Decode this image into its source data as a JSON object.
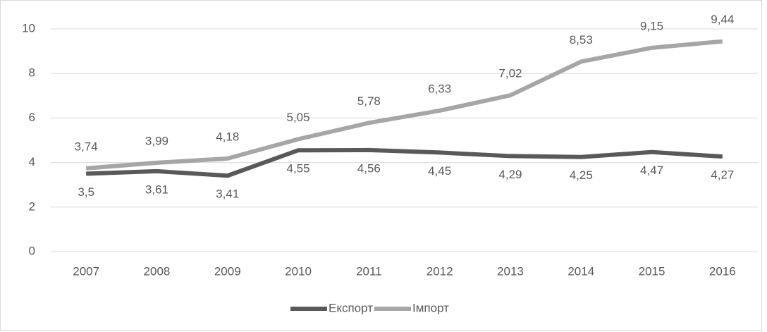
{
  "chart_data": {
    "type": "line",
    "categories": [
      "2007",
      "2008",
      "2009",
      "2010",
      "2011",
      "2012",
      "2013",
      "2014",
      "2015",
      "2016"
    ],
    "series": [
      {
        "name": "Експорт",
        "color": "#595959",
        "values": [
          3.5,
          3.61,
          3.41,
          4.55,
          4.56,
          4.45,
          4.29,
          4.25,
          4.47,
          4.27
        ],
        "value_labels": [
          "3,5",
          "3,61",
          "3,41",
          "4,55",
          "4,56",
          "4,45",
          "4,29",
          "4,25",
          "4,47",
          "4,27"
        ]
      },
      {
        "name": "Імпорт",
        "color": "#a6a6a6",
        "values": [
          3.74,
          3.99,
          4.18,
          5.05,
          5.78,
          6.33,
          7.02,
          8.53,
          9.15,
          9.44
        ],
        "value_labels": [
          "3,74",
          "3,99",
          "4,18",
          "5,05",
          "5,78",
          "6,33",
          "7,02",
          "8,53",
          "9,15",
          "9,44"
        ]
      }
    ],
    "ylim": [
      0,
      10
    ],
    "yticks": [
      0,
      2,
      4,
      6,
      8,
      10
    ],
    "grid": true,
    "legend": "bottom"
  }
}
